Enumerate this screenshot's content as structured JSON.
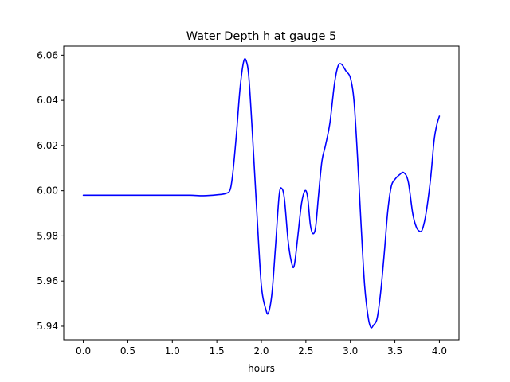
{
  "chart_data": {
    "type": "line",
    "title": "Water Depth h at gauge 5",
    "xlabel": "hours",
    "ylabel": "",
    "xlim": [
      -0.22,
      4.22
    ],
    "ylim": [
      5.934,
      6.064
    ],
    "xticks": [
      0.0,
      0.5,
      1.0,
      1.5,
      2.0,
      2.5,
      3.0,
      3.5,
      4.0
    ],
    "xtick_labels": [
      "0.0",
      "0.5",
      "1.0",
      "1.5",
      "2.0",
      "2.5",
      "3.0",
      "3.5",
      "4.0"
    ],
    "yticks": [
      5.94,
      5.96,
      5.98,
      6.0,
      6.02,
      6.04,
      6.06
    ],
    "ytick_labels": [
      "5.94",
      "5.96",
      "5.98",
      "6.00",
      "6.02",
      "6.04",
      "6.06"
    ],
    "grid": false,
    "legend": "none",
    "series": [
      {
        "color": "#0000ff",
        "x": [
          0.0,
          0.5,
          1.0,
          1.2,
          1.35,
          1.5,
          1.6,
          1.65,
          1.68,
          1.72,
          1.76,
          1.8,
          1.83,
          1.86,
          1.9,
          1.95,
          2.0,
          2.05,
          2.08,
          2.12,
          2.16,
          2.2,
          2.23,
          2.26,
          2.3,
          2.34,
          2.37,
          2.41,
          2.45,
          2.49,
          2.52,
          2.55,
          2.58,
          2.61,
          2.64,
          2.68,
          2.72,
          2.77,
          2.82,
          2.86,
          2.9,
          2.95,
          3.0,
          3.04,
          3.08,
          3.12,
          3.16,
          3.2,
          3.23,
          3.26,
          3.3,
          3.34,
          3.38,
          3.42,
          3.46,
          3.5,
          3.55,
          3.6,
          3.65,
          3.7,
          3.74,
          3.78,
          3.81,
          3.85,
          3.9,
          3.94,
          3.97,
          4.0
        ],
        "y": [
          5.998,
          5.998,
          5.998,
          5.998,
          5.9978,
          5.9982,
          5.9988,
          6.0005,
          6.008,
          6.025,
          6.045,
          6.057,
          6.0575,
          6.05,
          6.025,
          5.99,
          5.958,
          5.9475,
          5.946,
          5.955,
          5.976,
          5.998,
          6.001,
          5.996,
          5.978,
          5.968,
          5.967,
          5.98,
          5.994,
          6.0,
          5.997,
          5.985,
          5.981,
          5.984,
          5.997,
          6.013,
          6.02,
          6.03,
          6.047,
          6.055,
          6.056,
          6.053,
          6.05,
          6.04,
          6.015,
          5.985,
          5.958,
          5.944,
          5.9395,
          5.9405,
          5.9435,
          5.955,
          5.972,
          5.991,
          6.002,
          6.005,
          6.007,
          6.008,
          6.004,
          5.99,
          5.984,
          5.982,
          5.983,
          5.99,
          6.005,
          6.022,
          6.029,
          6.033
        ]
      }
    ]
  }
}
